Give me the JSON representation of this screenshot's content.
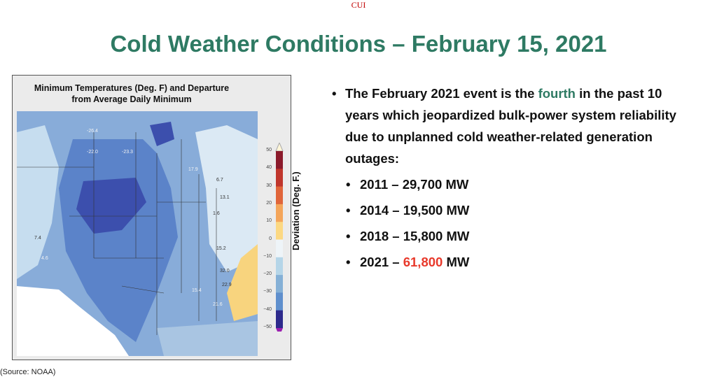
{
  "header": {
    "classification": "CUI",
    "title": "Cold Weather Conditions – February 15, 2021"
  },
  "map": {
    "title_line1": "Minimum Temperatures (Deg. F) and Departure",
    "title_line2": "from Average Daily Minimum",
    "colorbar_label": "Deviation (Deg. F.)",
    "colorbar_ticks": [
      "50",
      "40",
      "30",
      "20",
      "10",
      "0",
      "−10",
      "−20",
      "−30",
      "−40",
      "−50"
    ],
    "colorbar_colors": [
      "#8b1a2b",
      "#c0362c",
      "#e0653a",
      "#f4a55a",
      "#fcd882",
      "#eef4f8",
      "#b5d5e8",
      "#85b0d6",
      "#5f8fcd",
      "#3d5fb8",
      "#2d2a8c"
    ],
    "labels": [
      "-26.4",
      "-22.0",
      "-23.3",
      "17.9",
      "6.7",
      "13.1",
      "1.6",
      "15.2",
      "32.0",
      "22.9",
      "15.4",
      "21.6",
      "7.4",
      "4.6"
    ],
    "source": "(Source: NOAA)"
  },
  "content": {
    "intro_before": "The February 2021 event is the ",
    "intro_highlight": "fourth",
    "intro_after": " in the past 10 years which jeopardized bulk-power system reliability due to unplanned cold weather-related generation outages:",
    "highlight_color": "#2e7a63",
    "events": [
      {
        "year": "2011",
        "mw": "29,700",
        "unit": "MW"
      },
      {
        "year": "2014",
        "mw": "19,500",
        "unit": "MW"
      },
      {
        "year": "2018",
        "mw": "15,800",
        "unit": "MW"
      },
      {
        "year": "2021",
        "mw": "61,800",
        "unit": "MW",
        "color": "#e8392b"
      }
    ]
  }
}
